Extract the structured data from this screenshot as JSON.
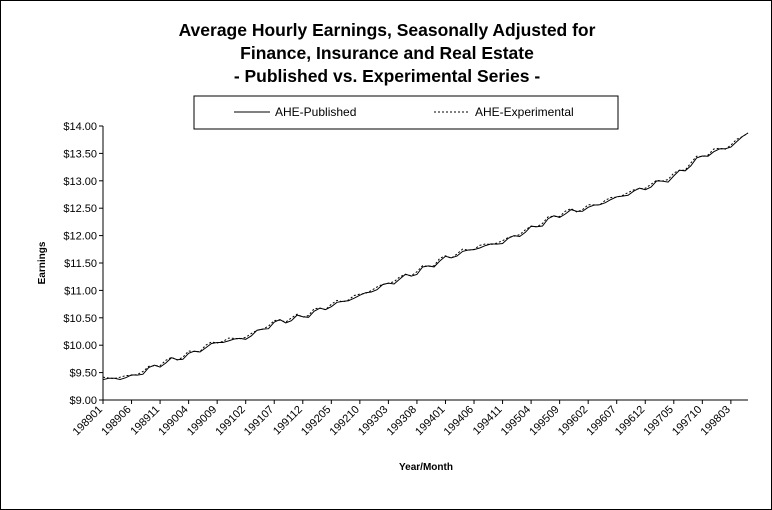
{
  "chart_data": {
    "type": "line",
    "title": [
      "Average Hourly Earnings, Seasonally Adjusted for",
      "Finance, Insurance and Real Estate",
      "- Published vs. Experimental Series -"
    ],
    "xlabel": "Year/Month",
    "ylabel": "Earnings",
    "ylim": [
      9.0,
      14.0
    ],
    "yticks": [
      "$9.00",
      "$9.50",
      "$10.00",
      "$10.50",
      "$11.00",
      "$11.50",
      "$12.00",
      "$12.50",
      "$13.00",
      "$13.50",
      "$14.00"
    ],
    "xticks": [
      "198901",
      "198906",
      "198911",
      "199004",
      "199009",
      "199102",
      "199107",
      "199112",
      "199205",
      "199210",
      "199303",
      "199308",
      "199401",
      "199406",
      "199411",
      "199504",
      "199509",
      "199602",
      "199607",
      "199612",
      "199705",
      "199710",
      "199803"
    ],
    "x_start": "198901",
    "x_end": "199806",
    "legend": {
      "placement": "top",
      "entries": [
        "AHE-Published",
        "AHE-Experimental"
      ]
    },
    "series": [
      {
        "name": "AHE-Published",
        "style": "solid",
        "anchors": [
          [
            "198901",
            9.37
          ],
          [
            "198906",
            9.42
          ],
          [
            "198911",
            9.65
          ],
          [
            "199004",
            9.82
          ],
          [
            "199009",
            10.05
          ],
          [
            "199102",
            10.13
          ],
          [
            "199107",
            10.4
          ],
          [
            "199112",
            10.52
          ],
          [
            "199205",
            10.72
          ],
          [
            "199210",
            10.9
          ],
          [
            "199303",
            11.12
          ],
          [
            "199308",
            11.33
          ],
          [
            "199401",
            11.58
          ],
          [
            "199406",
            11.76
          ],
          [
            "199411",
            11.88
          ],
          [
            "199504",
            12.12
          ],
          [
            "199509",
            12.38
          ],
          [
            "199602",
            12.5
          ],
          [
            "199607",
            12.69
          ],
          [
            "199612",
            12.87
          ],
          [
            "199705",
            13.07
          ],
          [
            "199710",
            13.45
          ],
          [
            "199803",
            13.63
          ],
          [
            "199806",
            13.87
          ]
        ]
      },
      {
        "name": "AHE-Experimental",
        "style": "dashed",
        "anchors": [
          [
            "198901",
            9.39
          ],
          [
            "198906",
            9.44
          ],
          [
            "198911",
            9.67
          ],
          [
            "199004",
            9.84
          ],
          [
            "199009",
            10.07
          ],
          [
            "199102",
            10.15
          ],
          [
            "199107",
            10.42
          ],
          [
            "199112",
            10.54
          ],
          [
            "199205",
            10.74
          ],
          [
            "199210",
            10.92
          ],
          [
            "199303",
            11.14
          ],
          [
            "199308",
            11.35
          ],
          [
            "199401",
            11.6
          ],
          [
            "199406",
            11.78
          ],
          [
            "199411",
            11.9
          ],
          [
            "199504",
            12.14
          ],
          [
            "199509",
            12.4
          ],
          [
            "199602",
            12.52
          ],
          [
            "199607",
            12.71
          ],
          [
            "199612",
            12.89
          ],
          [
            "199705",
            13.1
          ],
          [
            "199710",
            13.47
          ],
          [
            "199803",
            13.65
          ],
          [
            "199806",
            13.89
          ]
        ]
      }
    ]
  }
}
